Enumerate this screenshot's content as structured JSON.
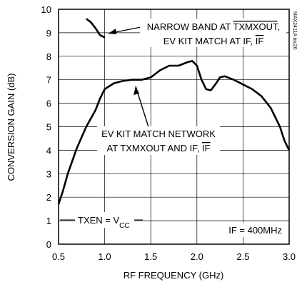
{
  "chart_data": {
    "type": "line",
    "xlabel": "RF FREQUENCY (GHz)",
    "ylabel": "CONVERSION GAIN (dB)",
    "xlim": [
      0.5,
      3.0
    ],
    "ylim": [
      0,
      10
    ],
    "xticks": [
      0.5,
      {
        "value": 1,
        "label": "1.0"
      },
      1.5,
      {
        "value": 2,
        "label": "2.0"
      },
      2.5,
      {
        "value": 3,
        "label": "3.0"
      }
    ],
    "yticks": [
      0,
      1,
      2,
      3,
      4,
      5,
      6,
      7,
      8,
      9,
      10
    ],
    "grid": true,
    "series": [
      {
        "color": "#000000",
        "x": [
          0.5,
          0.55,
          0.6,
          0.7,
          0.8,
          0.9,
          0.95,
          1.0,
          1.1,
          1.2,
          1.3,
          1.4,
          1.5,
          1.6,
          1.7,
          1.8,
          1.9,
          1.95,
          2.0,
          2.05,
          2.1,
          2.15,
          2.2,
          2.25,
          2.3,
          2.4,
          2.5,
          2.6,
          2.7,
          2.8,
          2.9,
          2.95,
          3.0
        ],
        "values": [
          1.7,
          2.3,
          3.0,
          4.1,
          5.0,
          5.7,
          6.2,
          6.6,
          6.85,
          6.95,
          7.0,
          7.0,
          7.1,
          7.4,
          7.6,
          7.6,
          7.75,
          7.8,
          7.6,
          7.0,
          6.6,
          6.55,
          6.8,
          7.1,
          7.15,
          7.0,
          6.8,
          6.6,
          6.3,
          5.8,
          5.0,
          4.4,
          4.0
        ]
      },
      {
        "color": "#000000",
        "x": [
          0.8,
          0.85,
          0.9,
          0.95,
          1.0
        ],
        "values": [
          9.6,
          9.45,
          9.2,
          8.9,
          8.8
        ]
      }
    ],
    "annotations": [
      {
        "lines": [
          [
            {
              "text": "NARROW BAND AT "
            },
            {
              "text": "TXMXOUT",
              "overline": true
            },
            {
              "text": ","
            }
          ],
          [
            {
              "text": "EV KIT MATCH AT IF, "
            },
            {
              "text": "IF",
              "overline": true
            }
          ]
        ]
      },
      {
        "lines": [
          [
            {
              "text": "EV KIT MATCH NETWORK"
            }
          ],
          [
            {
              "text": "AT TXMXOUT AND IF, "
            },
            {
              "text": "IF",
              "overline": true
            }
          ]
        ]
      },
      {
        "lines": [
          [
            {
              "text": "TXEN = V"
            },
            {
              "text": "CC",
              "sub": true
            }
          ]
        ]
      },
      {
        "lines": [
          [
            {
              "text": "IF = 400MHz"
            }
          ]
        ]
      }
    ],
    "note": "MAX2411A toc20"
  }
}
